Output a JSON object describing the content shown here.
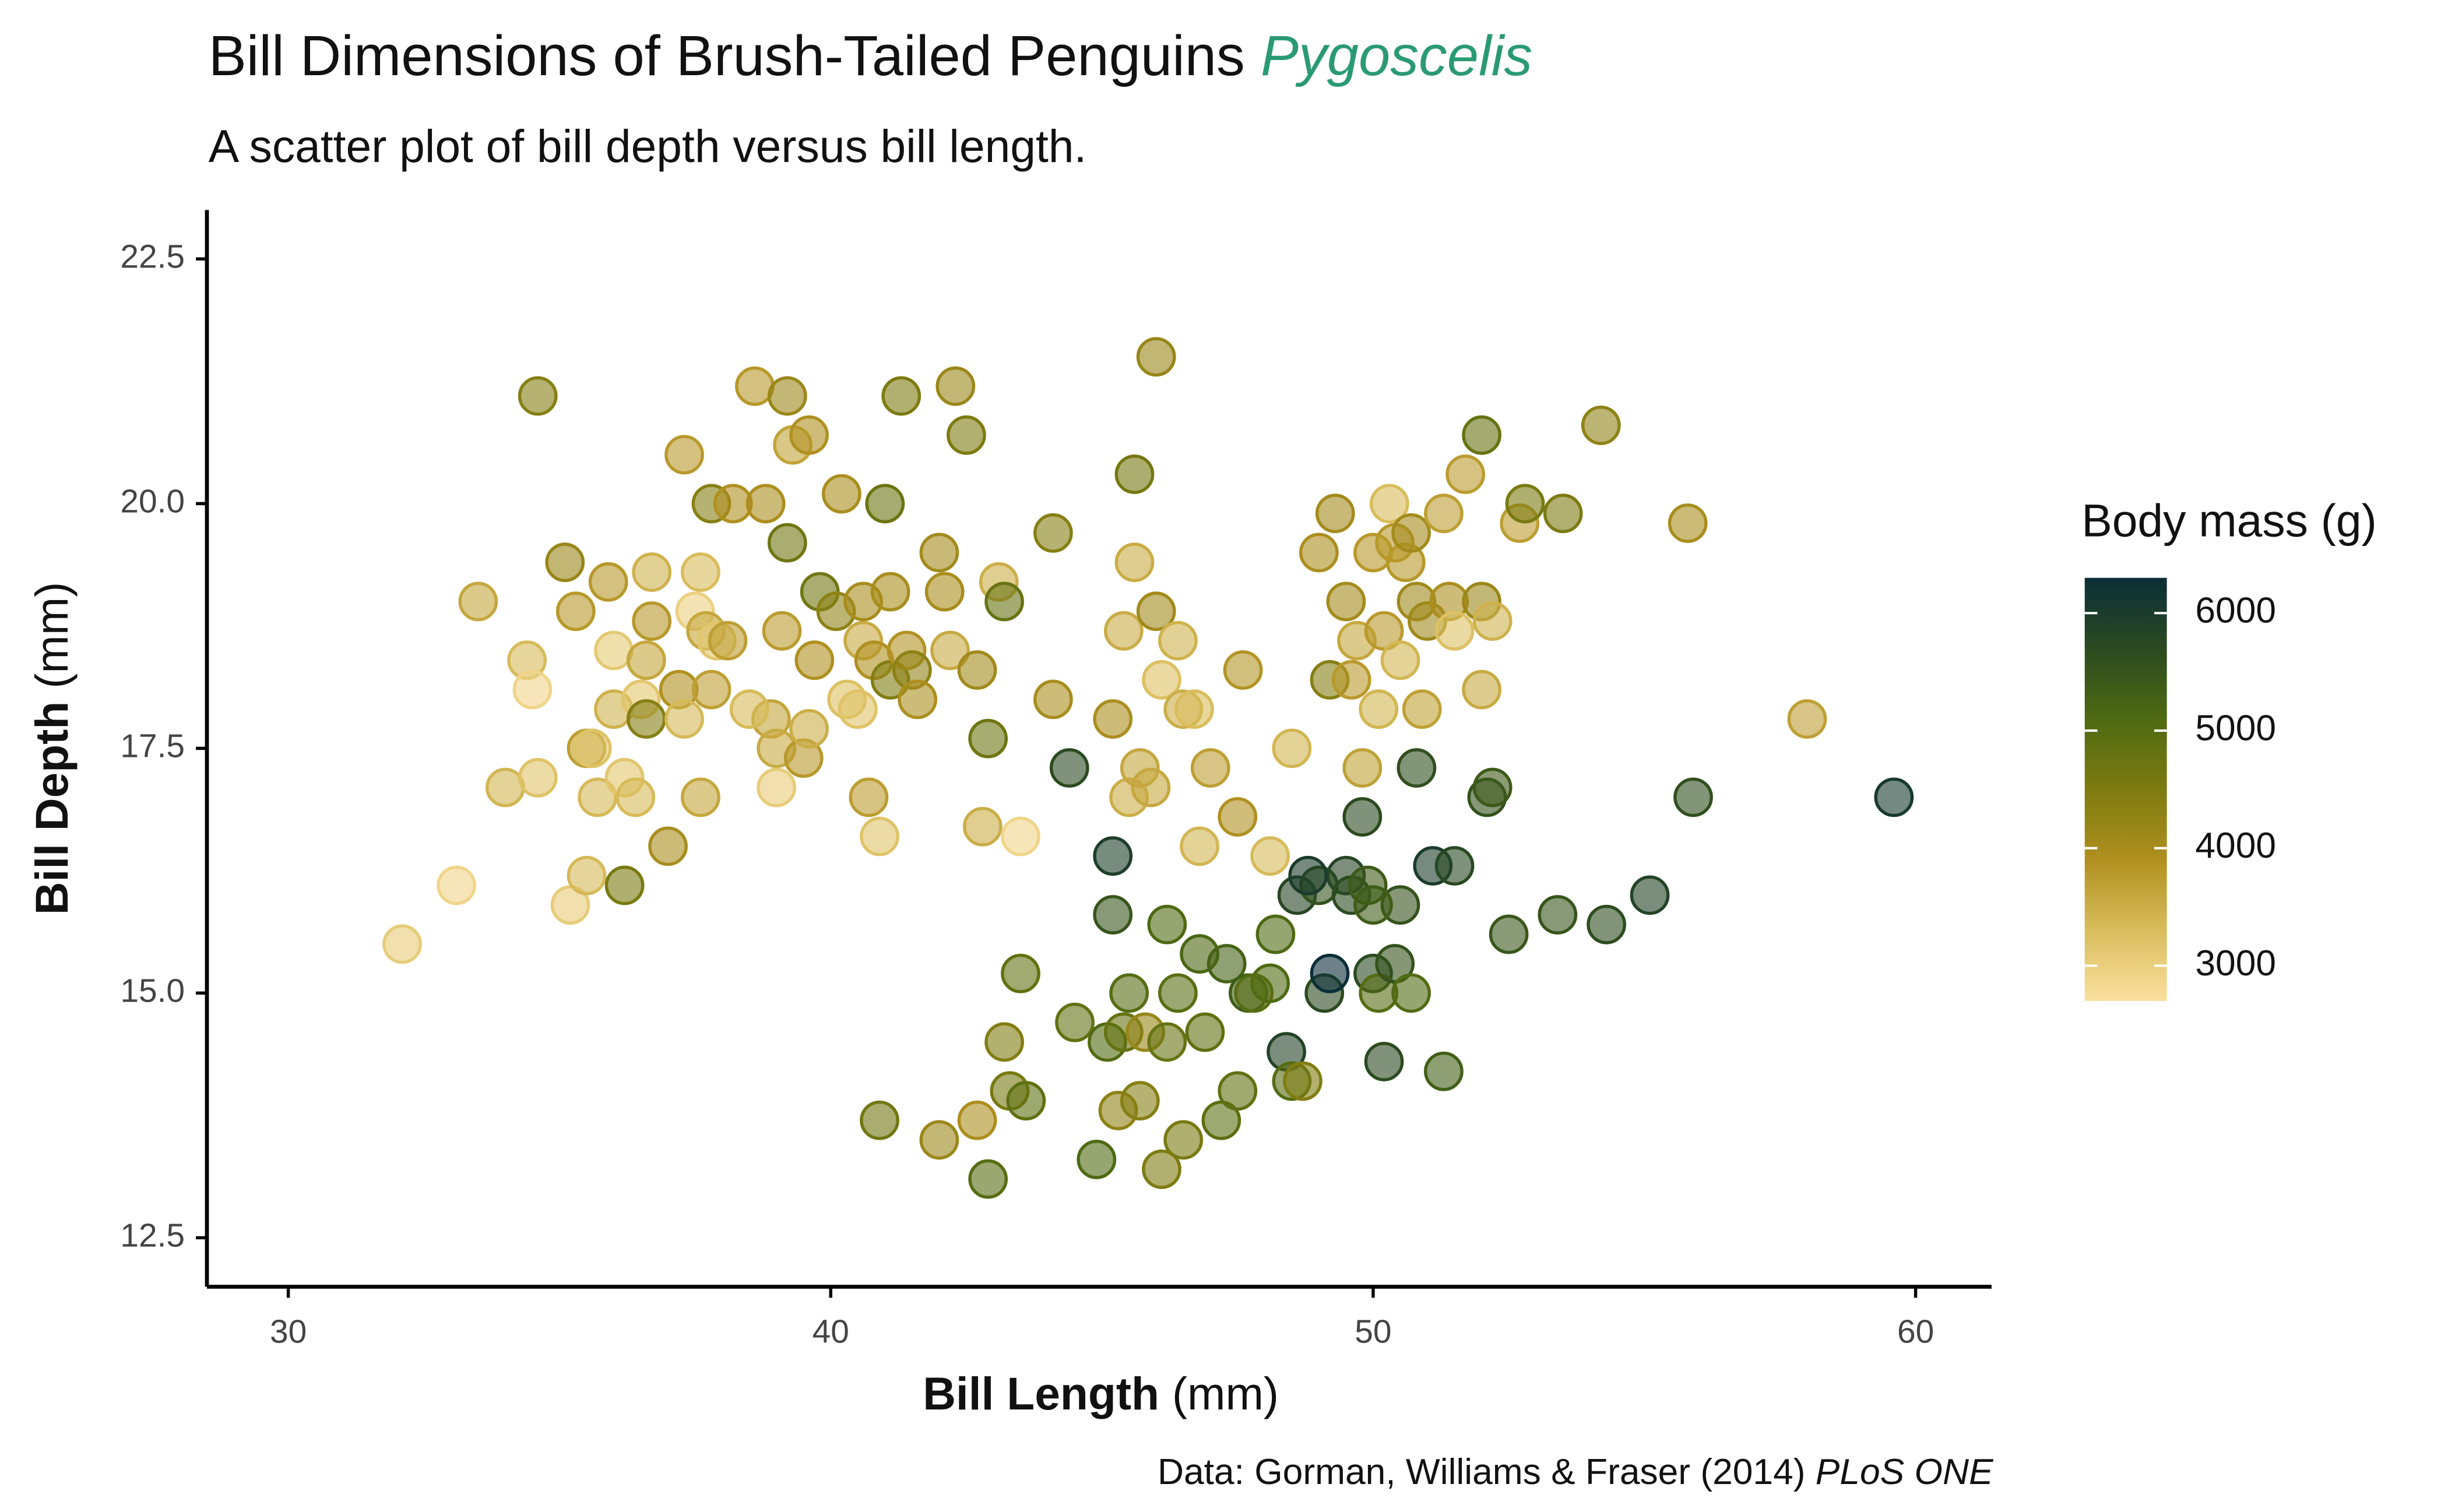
{
  "chart_data": {
    "type": "scatter",
    "title": "Bill Dimensions of Brush-Tailed Penguins",
    "title_genus": "Pygoscelis",
    "subtitle": "A scatter plot of bill depth versus bill length.",
    "x_label": "Bill Length",
    "x_unit": "(mm)",
    "y_label": "Bill Depth",
    "y_unit": "(mm)",
    "caption": "Data: Gorman, Williams & Fraser (2014)",
    "caption_journal": "PLoS ONE",
    "legend_title": "Body mass (g)",
    "xlim": [
      28.5,
      61.4
    ],
    "xticks": [
      30,
      40,
      50,
      60
    ],
    "ylim": [
      12.0,
      23.0
    ],
    "yticks": [
      {
        "value": 12.5,
        "label": "12.5"
      },
      {
        "value": 15,
        "label": "15.0"
      },
      {
        "value": 17.5,
        "label": "17.5"
      },
      {
        "value": 20,
        "label": "20.0"
      },
      {
        "value": 22.5,
        "label": "22.5"
      }
    ],
    "colorlim": [
      2700,
      6300
    ],
    "colorticks": [
      3000,
      4000,
      5000,
      6000
    ],
    "colors": [
      "#fbe0a0",
      "#d9bd5c",
      "#b0901f",
      "#7d7b10",
      "#4e6a12",
      "#2b4a20",
      "#0b2e38"
    ],
    "title_color": "#2a9a72",
    "x": [
      32.1,
      33.1,
      33.5,
      34.0,
      34.4,
      34.5,
      34.6,
      34.6,
      35.1,
      35.2,
      35.3,
      35.5,
      35.5,
      35.6,
      35.7,
      35.9,
      36.0,
      36.0,
      36.2,
      36.2,
      36.4,
      36.5,
      36.6,
      36.7,
      36.7,
      37.0,
      37.2,
      37.3,
      37.3,
      37.5,
      37.6,
      37.7,
      37.8,
      37.8,
      37.9,
      38.1,
      38.2,
      38.6,
      38.8,
      38.9,
      39.0,
      39.1,
      39.2,
      39.2,
      39.3,
      39.5,
      39.6,
      39.6,
      39.7,
      39.8,
      40.1,
      40.2,
      40.3,
      40.5,
      40.6,
      40.6,
      40.7,
      40.8,
      40.9,
      41.0,
      41.1,
      41.1,
      41.3,
      41.4,
      41.5,
      42.0,
      42.1,
      42.2,
      42.3,
      42.5,
      42.7,
      42.9,
      43.1,
      43.2,
      44.1,
      44.1,
      45.6,
      46.0,
      36.6,
      37.6,
      38.5,
      39.0,
      41.6,
      42.8,
      43.5,
      40.9,
      42.0,
      42.7,
      42.9,
      43.2,
      43.3,
      43.5,
      43.6,
      44.4,
      44.5,
      44.9,
      45.1,
      45.2,
      45.2,
      45.3,
      45.4,
      45.5,
      45.7,
      45.8,
      46.1,
      46.2,
      46.2,
      46.4,
      46.5,
      46.8,
      47.2,
      47.3,
      47.5,
      47.7,
      48.1,
      48.2,
      48.4,
      48.5,
      48.6,
      48.7,
      49.0,
      49.1,
      49.2,
      49.5,
      49.6,
      49.8,
      49.9,
      50.0,
      50.1,
      50.2,
      50.4,
      50.5,
      50.7,
      50.8,
      51.1,
      51.3,
      51.5,
      52.1,
      52.2,
      52.5,
      53.4,
      54.3,
      55.1,
      55.9,
      59.6,
      46.9,
      47.8,
      48.8,
      50.0,
      45.2,
      45.4,
      45.5,
      45.6,
      45.7,
      45.9,
      46.0,
      46.1,
      46.4,
      46.5,
      46.7,
      46.8,
      47.0,
      47.5,
      47.6,
      48.1,
      48.5,
      49.0,
      49.2,
      49.3,
      49.5,
      49.6,
      49.7,
      49.8,
      50.0,
      50.1,
      50.2,
      50.3,
      50.4,
      50.5,
      50.6,
      50.7,
      50.8,
      50.9,
      51.0,
      51.3,
      51.4,
      51.5,
      51.7,
      52.0,
      52.0,
      52.0,
      52.2,
      52.7,
      52.8,
      53.5,
      54.2,
      55.8,
      58.0
    ],
    "values": [
      15.5,
      16.1,
      19.0,
      17.1,
      18.4,
      18.1,
      21.1,
      17.2,
      19.4,
      15.9,
      18.9,
      17.5,
      16.2,
      17.5,
      17.0,
      19.2,
      17.9,
      18.5,
      17.2,
      16.1,
      17.0,
      18.0,
      17.8,
      19.3,
      18.8,
      16.5,
      18.1,
      20.5,
      17.8,
      18.9,
      19.3,
      18.7,
      20.0,
      18.1,
      18.6,
      18.6,
      20.0,
      21.2,
      20.0,
      17.8,
      17.5,
      18.7,
      19.6,
      21.1,
      20.6,
      17.4,
      17.7,
      20.7,
      18.4,
      19.1,
      18.9,
      20.1,
      18.0,
      17.9,
      18.6,
      19.0,
      17.0,
      18.4,
      16.6,
      20.0,
      18.2,
      19.1,
      21.1,
      18.5,
      18.3,
      19.5,
      19.1,
      18.5,
      21.2,
      20.7,
      18.3,
      17.6,
      19.2,
      19.0,
      19.7,
      18.0,
      20.3,
      21.5,
      18.4,
      17.0,
      17.9,
      17.1,
      18.0,
      16.7,
      16.6,
      13.7,
      13.5,
      13.7,
      13.1,
      14.5,
      14.0,
      15.2,
      13.9,
      17.3,
      14.7,
      13.3,
      14.5,
      15.8,
      16.4,
      13.8,
      14.6,
      15.0,
      13.9,
      14.6,
      13.2,
      14.5,
      15.7,
      15.0,
      13.5,
      15.4,
      13.7,
      15.3,
      14.0,
      15.0,
      15.1,
      15.6,
      14.4,
      14.1,
      16.0,
      14.1,
      16.1,
      15.0,
      15.2,
      16.2,
      16.0,
      16.8,
      16.1,
      15.2,
      15.0,
      14.3,
      15.3,
      15.9,
      15.0,
      17.3,
      16.3,
      14.2,
      16.3,
      17.0,
      17.1,
      15.6,
      15.8,
      15.7,
      16.0,
      17.0,
      17.0,
      14.6,
      15.0,
      16.2,
      15.9,
      17.8,
      18.7,
      17.0,
      19.4,
      17.3,
      17.1,
      18.9,
      18.2,
      18.6,
      17.9,
      17.9,
      16.5,
      17.3,
      16.8,
      18.3,
      16.4,
      17.5,
      19.5,
      18.2,
      19.9,
      19.0,
      18.2,
      18.6,
      17.3,
      19.5,
      17.9,
      18.7,
      20.0,
      19.6,
      18.4,
      19.4,
      19.7,
      19.0,
      17.9,
      18.8,
      19.9,
      19.0,
      18.7,
      20.3,
      18.1,
      19.0,
      20.7,
      18.8,
      19.8,
      20.0,
      19.9,
      20.8,
      19.8,
      17.8
    ],
    "mass": [
      3050,
      2900,
      3600,
      3400,
      3325,
      2900,
      4400,
      3200,
      4200,
      3050,
      3800,
      3700,
      3350,
      3200,
      3350,
      3800,
      3450,
      3100,
      3150,
      4550,
      3325,
      3150,
      4400,
      3450,
      3800,
      4000,
      3900,
      3775,
      3350,
      2975,
      3300,
      3600,
      4400,
      3700,
      3150,
      3700,
      3900,
      3800,
      3950,
      3625,
      3550,
      3750,
      4675,
      4150,
      3650,
      3800,
      3500,
      3900,
      3900,
      4650,
      4300,
      3975,
      3250,
      3200,
      3550,
      4000,
      3725,
      3900,
      3200,
      4725,
      4450,
      4000,
      4500,
      3875,
      4300,
      4050,
      4000,
      3550,
      4150,
      4500,
      4075,
      4700,
      3500,
      4775,
      4400,
      4000,
      4600,
      4200,
      3600,
      3600,
      3325,
      3050,
      3950,
      3500,
      2900,
      4650,
      4150,
      3950,
      5000,
      4450,
      4575,
      4850,
      4900,
      5700,
      4850,
      5100,
      5050,
      5500,
      5950,
      4300,
      4800,
      5000,
      4400,
      4200,
      4500,
      4800,
      5100,
      4975,
      4550,
      5150,
      4925,
      5250,
      4875,
      5350,
      5100,
      5100,
      5850,
      5000,
      5800,
      4450,
      5550,
      5700,
      6300,
      5800,
      5700,
      5700,
      5400,
      5700,
      5000,
      5700,
      5550,
      5550,
      5050,
      5600,
      6000,
      5300,
      5750,
      5550,
      5400,
      5450,
      5500,
      5650,
      5850,
      5600,
      6050,
      4875,
      5000,
      6000,
      5350,
      3950,
      3525,
      3500,
      3525,
      3600,
      3575,
      4075,
      3250,
      3450,
      3500,
      3300,
      3400,
      3700,
      3900,
      3850,
      3325,
      3400,
      3950,
      4400,
      4050,
      4050,
      3775,
      3600,
      3675,
      3800,
      3400,
      3775,
      3300,
      3800,
      3400,
      3800,
      4050,
      4100,
      3675,
      4100,
      3700,
      3950,
      3250,
      3750,
      3550,
      4150,
      4800,
      3450,
      3725,
      4550,
      4500,
      4300,
      4000,
      3700
    ]
  }
}
